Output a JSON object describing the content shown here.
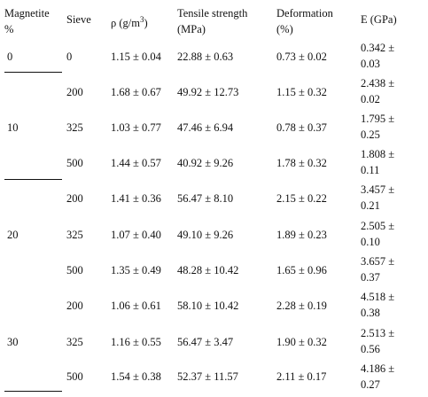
{
  "table": {
    "headers": {
      "magnetite": [
        "Magnetite",
        "%"
      ],
      "sieve": "Sieve",
      "density_prefix": "ρ (g/m",
      "density_sup": "3",
      "density_suffix": ")",
      "tensile": [
        "Tensile strength",
        "(MPa)"
      ],
      "deformation": [
        "Deformation",
        "(%)"
      ],
      "modulus": "E (GPa)"
    },
    "groups": [
      {
        "magnetite": "0"
      },
      {
        "magnetite": "10"
      },
      {
        "magnetite": "20"
      },
      {
        "magnetite": "30"
      }
    ],
    "rows": [
      {
        "sieve": "0",
        "density": "1.15 ± 0.04",
        "tensile": "22.88 ± 0.63",
        "deformation": "0.73 ± 0.02",
        "e1": "0.342 ±",
        "e2": "0.03"
      },
      {
        "sieve": "200",
        "density": "1.68 ± 0.67",
        "tensile": "49.92 ± 12.73",
        "deformation": "1.15 ± 0.32",
        "e1": "2.438 ±",
        "e2": "0.02"
      },
      {
        "sieve": "325",
        "density": "1.03 ± 0.77",
        "tensile": "47.46 ± 6.94",
        "deformation": "0.78 ± 0.37",
        "e1": "1.795 ±",
        "e2": "0.25"
      },
      {
        "sieve": "500",
        "density": "1.44 ± 0.57",
        "tensile": "40.92 ± 9.26",
        "deformation": "1.78 ± 0.32",
        "e1": "1.808 ±",
        "e2": "0.11"
      },
      {
        "sieve": "200",
        "density": "1.41 ± 0.36",
        "tensile": "56.47 ± 8.10",
        "deformation": "2.15 ± 0.22",
        "e1": "3.457 ±",
        "e2": "0.21"
      },
      {
        "sieve": "325",
        "density": "1.07 ± 0.40",
        "tensile": "49.10 ± 9.26",
        "deformation": "1.89 ± 0.23",
        "e1": "2.505 ±",
        "e2": "0.10"
      },
      {
        "sieve": "500",
        "density": "1.35 ± 0.49",
        "tensile": "48.28 ± 10.42",
        "deformation": "1.65 ± 0.96",
        "e1": "3.657 ±",
        "e2": "0.37"
      },
      {
        "sieve": "200",
        "density": "1.06 ± 0.61",
        "tensile": "58.10 ± 10.42",
        "deformation": "2.28 ± 0.19",
        "e1": "4.518 ±",
        "e2": "0.38"
      },
      {
        "sieve": "325",
        "density": "1.16 ± 0.55",
        "tensile": "56.47 ± 3.47",
        "deformation": "1.90 ± 0.32",
        "e1": "2.513 ±",
        "e2": "0.56"
      },
      {
        "sieve": "500",
        "density": "1.54 ± 0.38",
        "tensile": "52.37 ± 11.57",
        "deformation": "2.11 ± 0.17",
        "e1": "4.186 ±",
        "e2": "0.27"
      }
    ]
  }
}
